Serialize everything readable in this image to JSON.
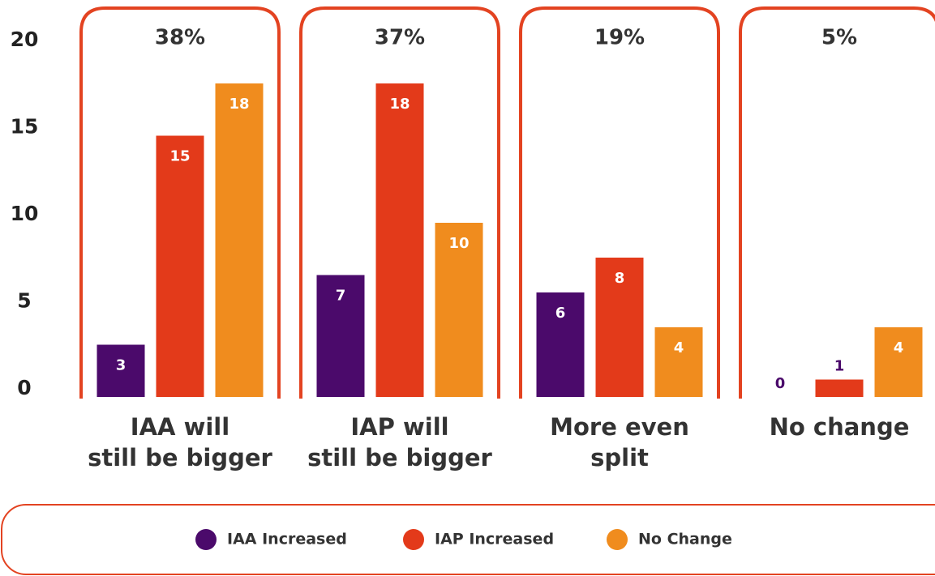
{
  "chart_data": {
    "type": "bar",
    "categories": [
      "IAA will\nstill be bigger",
      "IAP will\nstill be bigger",
      "More even\nsplit",
      "No change"
    ],
    "annotations": [
      "38%",
      "37%",
      "19%",
      "5%"
    ],
    "series": [
      {
        "name": "IAA Increased",
        "color": "#4b0a6b",
        "values": [
          3,
          7,
          6,
          0
        ]
      },
      {
        "name": "IAP Increased",
        "color": "#e33a1a",
        "values": [
          15,
          18,
          8,
          1
        ]
      },
      {
        "name": "No Change",
        "color": "#f08c1e",
        "values": [
          18,
          10,
          4,
          4
        ]
      }
    ],
    "ylim": [
      0,
      22
    ],
    "yticks": [
      0,
      5,
      10,
      15,
      20
    ],
    "grid": false,
    "legend": "bottom",
    "frame_color": "#e34321"
  }
}
